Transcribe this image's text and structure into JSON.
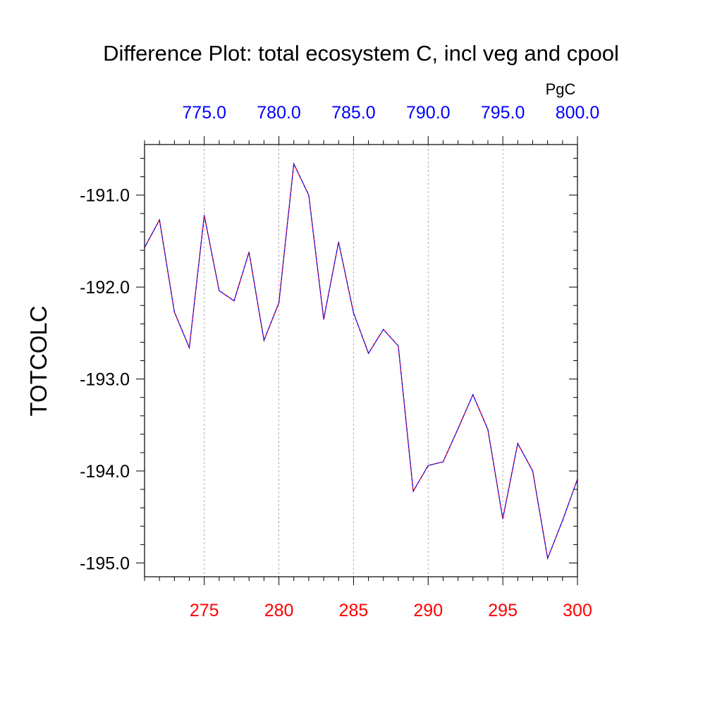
{
  "chart_data": {
    "type": "line",
    "title": "Difference Plot: total ecosystem C, incl veg and cpool",
    "ylabel": "TOTCOLC",
    "top_axis_units": "PgC",
    "xlim": [
      271,
      300
    ],
    "ylim": [
      -195.15,
      -190.45
    ],
    "x_ticks": [
      275,
      280,
      285,
      290,
      295,
      300
    ],
    "x_tick_labels": [
      "275",
      "280",
      "285",
      "290",
      "295",
      "300"
    ],
    "top_ticks": [
      "775.0",
      "780.0",
      "785.0",
      "790.0",
      "795.0",
      "800.0"
    ],
    "y_ticks": [
      -191.0,
      -192.0,
      -193.0,
      -194.0,
      -195.0
    ],
    "y_tick_labels": [
      "-191.0",
      "-192.0",
      "-193.0",
      "-194.0",
      "-195.0"
    ],
    "grid": "vertical dashed at major x ticks",
    "colors": {
      "bottom_ticks": "#ff0000",
      "top_ticks": "#0000ff",
      "line_a": "#0000ff",
      "line_b": "#ff0000"
    },
    "series": [
      {
        "x": [
          271,
          272,
          273,
          274,
          275,
          276,
          277,
          278,
          279,
          280,
          281,
          282,
          283,
          284,
          285,
          286,
          287,
          288,
          289,
          290,
          291,
          292,
          293,
          294,
          295,
          296,
          297,
          298,
          299,
          300
        ],
        "values": [
          -191.57,
          -191.27,
          -192.27,
          -192.66,
          -191.22,
          -192.04,
          -192.15,
          -191.62,
          -192.58,
          -192.17,
          -190.66,
          -191.0,
          -192.35,
          -191.51,
          -192.28,
          -192.72,
          -192.46,
          -192.64,
          -194.22,
          -193.94,
          -193.9,
          -193.54,
          -193.17,
          -193.55,
          -194.52,
          -193.7,
          -194.0,
          -194.95,
          -194.54,
          -194.09
        ]
      }
    ]
  }
}
